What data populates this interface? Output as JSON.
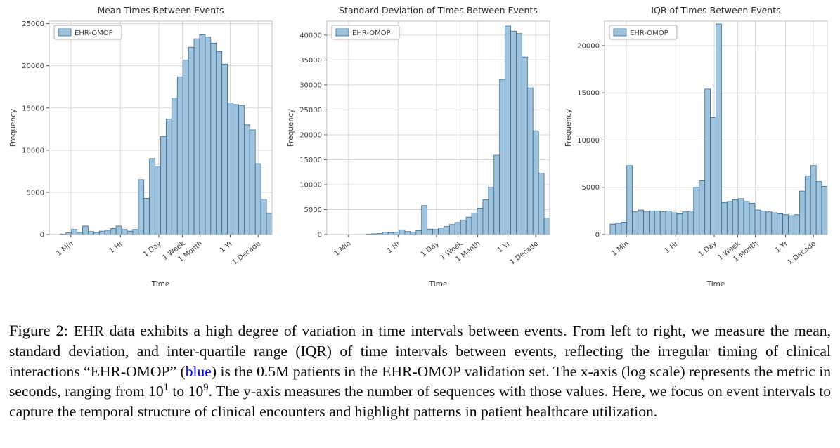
{
  "style": {
    "background": "#ffffff",
    "bar_fill": "#9fc3dd",
    "bar_edge": "#31678d",
    "grid": "#d9d9d9",
    "spine": "#bdbdbd",
    "tick": "#555555",
    "text": "#3d3d3d",
    "title": "#2b2b2b",
    "legend_border": "#999999",
    "caption_link_color": "#0000EE"
  },
  "chart_data": [
    {
      "type": "bar",
      "title": "Mean Times Between Events",
      "xlabel": "Time",
      "ylabel": "Frequency",
      "legend": [
        "EHR-OMOP"
      ],
      "legend_position": "upper-left",
      "x_scale": "log10-seconds",
      "x_log10_range": [
        1,
        9
      ],
      "bin_start_log10": 1.0,
      "bin_width_log10": 0.2,
      "x_ticks": [
        {
          "label": "1 Min",
          "log10": 1.778
        },
        {
          "label": "1 Hr",
          "log10": 3.556
        },
        {
          "label": "1 Day",
          "log10": 4.937
        },
        {
          "label": "1 Week",
          "log10": 5.782
        },
        {
          "label": "1 Month",
          "log10": 6.417
        },
        {
          "label": "1 Yr",
          "log10": 7.499
        },
        {
          "label": "1 Decade",
          "log10": 8.499
        }
      ],
      "y_ticks": [
        0,
        5000,
        10000,
        15000,
        20000,
        25000
      ],
      "ylim": [
        0,
        25300
      ],
      "values": [
        0,
        0,
        60,
        200,
        600,
        250,
        1000,
        350,
        250,
        400,
        500,
        700,
        1000,
        600,
        400,
        600,
        6500,
        4300,
        9000,
        8100,
        11600,
        13700,
        16200,
        18700,
        20700,
        22200,
        23200,
        23700,
        23400,
        22700,
        21700,
        20200,
        15600,
        15400,
        15300,
        13000,
        12400,
        8400,
        4200,
        2500
      ]
    },
    {
      "type": "bar",
      "title": "Standard Deviation of Times Between Events",
      "xlabel": "Time",
      "ylabel": "Frequency",
      "legend": [
        "EHR-OMOP"
      ],
      "legend_position": "upper-left",
      "x_scale": "log10-seconds",
      "x_log10_range": [
        1,
        9
      ],
      "bin_start_log10": 1.0,
      "bin_width_log10": 0.2,
      "x_ticks": [
        {
          "label": "1 Min",
          "log10": 1.778
        },
        {
          "label": "1 Hr",
          "log10": 3.556
        },
        {
          "label": "1 Day",
          "log10": 4.937
        },
        {
          "label": "1 Week",
          "log10": 5.782
        },
        {
          "label": "1 Month",
          "log10": 6.417
        },
        {
          "label": "1 Yr",
          "log10": 7.499
        },
        {
          "label": "1 Decade",
          "log10": 8.499
        }
      ],
      "y_ticks": [
        0,
        5000,
        10000,
        15000,
        20000,
        25000,
        30000,
        35000,
        40000
      ],
      "ylim": [
        0,
        42800
      ],
      "values": [
        0,
        0,
        0,
        0,
        0,
        0,
        0,
        100,
        150,
        200,
        500,
        400,
        500,
        900,
        600,
        500,
        800,
        5800,
        1100,
        1000,
        1300,
        1600,
        2000,
        2400,
        2900,
        3500,
        4300,
        5300,
        7000,
        9500,
        15900,
        31100,
        41800,
        40800,
        40300,
        35600,
        29400,
        20800,
        12300,
        3300
      ]
    },
    {
      "type": "bar",
      "title": "IQR of Times Between Events",
      "xlabel": "Time",
      "ylabel": "Frequency",
      "legend": [
        "EHR-OMOP"
      ],
      "legend_position": "upper-left",
      "x_scale": "log10-seconds",
      "x_log10_range": [
        1,
        9
      ],
      "bin_start_log10": 1.0,
      "bin_width_log10": 0.2,
      "x_ticks": [
        {
          "label": "1 Min",
          "log10": 1.778
        },
        {
          "label": "1 Hr",
          "log10": 3.556
        },
        {
          "label": "1 Day",
          "log10": 4.937
        },
        {
          "label": "1 Week",
          "log10": 5.782
        },
        {
          "label": "1 Month",
          "log10": 6.417
        },
        {
          "label": "1 Yr",
          "log10": 7.499
        },
        {
          "label": "1 Decade",
          "log10": 8.499
        }
      ],
      "y_ticks": [
        0,
        5000,
        10000,
        15000,
        20000
      ],
      "ylim": [
        0,
        22600
      ],
      "values": [
        0,
        1100,
        1200,
        1300,
        7300,
        2400,
        2600,
        2400,
        2500,
        2500,
        2400,
        2500,
        2300,
        2200,
        2400,
        2500,
        5000,
        5700,
        15400,
        12400,
        22300,
        3400,
        3500,
        3700,
        3800,
        3500,
        3300,
        2600,
        2500,
        2400,
        2300,
        2200,
        2100,
        2000,
        2100,
        4600,
        6200,
        7300,
        5600,
        5100
      ]
    }
  ],
  "caption": {
    "segments": [
      {
        "text": "Figure 2: ",
        "style": "label"
      },
      {
        "text": "EHR data exhibits a high degree of variation in time intervals between events. From left to right, we measure the mean, standard deviation, and inter-quartile range (IQR) of time intervals between events, reflecting the irregular timing of clinical interactions “EHR-OMOP” (",
        "style": "normal"
      },
      {
        "text": "blue",
        "style": "blue"
      },
      {
        "text": ") is the 0.5M patients in the EHR-OMOP validation set. The x-axis (log scale) represents the metric in seconds, ranging from 10",
        "style": "normal"
      },
      {
        "text": "1",
        "style": "sup"
      },
      {
        "text": " to 10",
        "style": "normal"
      },
      {
        "text": "9",
        "style": "sup"
      },
      {
        "text": ". The y-axis measures the number of sequences with those values. Here, we focus on event intervals to capture the temporal structure of clinical encounters and highlight patterns in patient healthcare utilization.",
        "style": "normal"
      }
    ]
  }
}
